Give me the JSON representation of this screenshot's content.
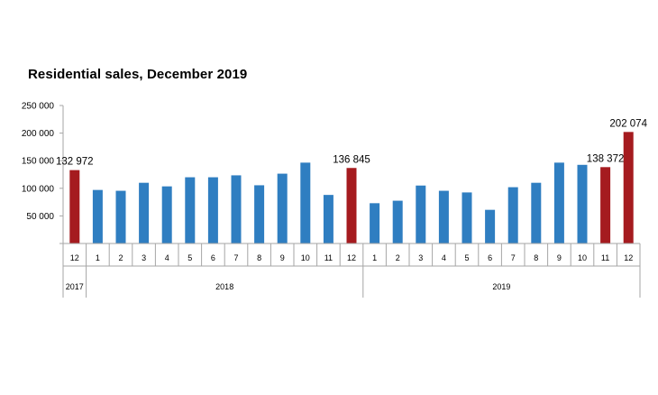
{
  "chart_data": {
    "type": "bar",
    "title": "Residential sales, December 2019",
    "xlabel": "",
    "ylabel": "",
    "ylim": [
      0,
      250000
    ],
    "yticks": [
      0,
      50000,
      100000,
      150000,
      200000,
      250000
    ],
    "ytick_labels": [
      "",
      "50 000",
      "100 000",
      "150 000",
      "200 000",
      "250 000"
    ],
    "grid": false,
    "categories": [
      "12",
      "1",
      "2",
      "3",
      "4",
      "5",
      "6",
      "7",
      "8",
      "9",
      "10",
      "11",
      "12",
      "1",
      "2",
      "3",
      "4",
      "5",
      "6",
      "7",
      "8",
      "9",
      "10",
      "11",
      "12"
    ],
    "values": [
      132972,
      97000,
      95500,
      110000,
      103500,
      120000,
      120000,
      123500,
      105500,
      126500,
      146500,
      88000,
      136845,
      73000,
      77500,
      105000,
      95500,
      92500,
      61000,
      102000,
      110000,
      146500,
      142500,
      138372,
      202074
    ],
    "highlighted": [
      true,
      false,
      false,
      false,
      false,
      false,
      false,
      false,
      false,
      false,
      false,
      false,
      true,
      false,
      false,
      false,
      false,
      false,
      false,
      false,
      false,
      false,
      false,
      true,
      true
    ],
    "data_labels": [
      "132 972",
      "",
      "",
      "",
      "",
      "",
      "",
      "",
      "",
      "",
      "",
      "",
      "136 845",
      "",
      "",
      "",
      "",
      "",
      "",
      "",
      "",
      "",
      "",
      "138 372",
      "202 074"
    ],
    "year_groups": [
      {
        "label": "2017",
        "start": 0,
        "end": 0
      },
      {
        "label": "2018",
        "start": 1,
        "end": 12
      },
      {
        "label": "2019",
        "start": 13,
        "end": 24
      }
    ],
    "colors": {
      "normal": "#2f7ec1",
      "highlight": "#a51b1f",
      "axis": "#a6a6a6"
    }
  }
}
